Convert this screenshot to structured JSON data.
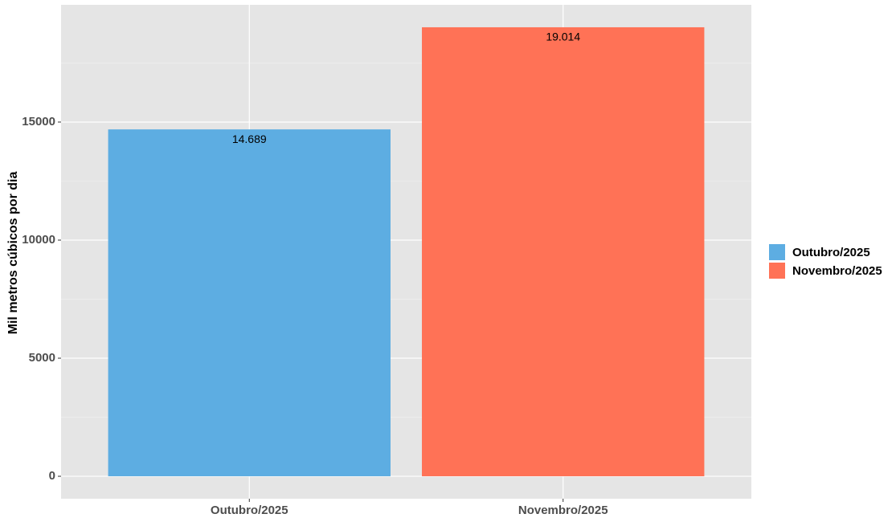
{
  "chart_data": {
    "type": "bar",
    "y_label": "Mil metros cúbicos por dia",
    "categories": [
      "Outubro/2025",
      "Novembro/2025"
    ],
    "values": [
      14689,
      19014
    ],
    "value_labels": [
      "14.689",
      "19.014"
    ],
    "colors": [
      "#5dade2",
      "#ff7256"
    ],
    "ylim": [
      -950.7,
      19964.7
    ],
    "yticks": [
      0,
      5000,
      10000,
      15000
    ],
    "yminorticks": [
      2500,
      7500,
      12500,
      17500
    ],
    "grid": true,
    "legend": "right"
  }
}
